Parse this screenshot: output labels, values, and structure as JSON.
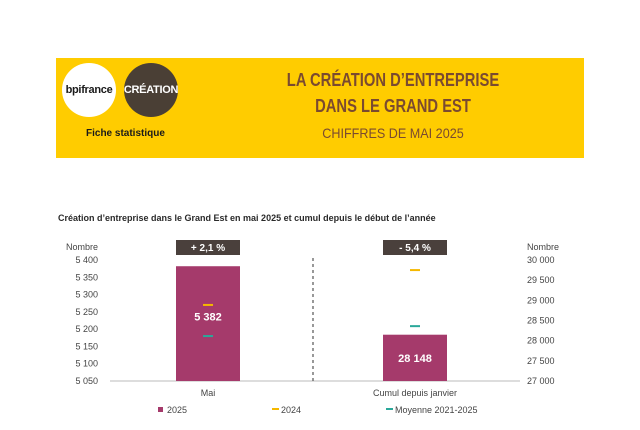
{
  "banner": {
    "logo_left": "bpifrance",
    "logo_right": "CRÉATION",
    "fiche": "Fiche statistique",
    "title_line1": "LA CRÉATION D’ENTREPRISE",
    "title_line2": "DANS LE GRAND EST",
    "subtitle": "CHIFFRES DE MAI 2025"
  },
  "colors": {
    "banner_bg": "#ffcc00",
    "bar_2025": "#a53a6b",
    "marker_2024": "#f5b800",
    "marker_avg": "#2aa89a",
    "badge_bg": "#4a403c"
  },
  "chart_data": {
    "type": "bar",
    "title": "Création d’entreprise dans le Grand Est en mai 2025 et cumul depuis le début de l’année",
    "categories": [
      "Mai",
      "Cumul depuis janvier"
    ],
    "series": [
      {
        "name": "2025",
        "values": [
          5382,
          28148
        ]
      },
      {
        "name": "2024",
        "values": [
          5270,
          29750
        ]
      },
      {
        "name": "Moyenne 2021-2025",
        "values": [
          5180,
          28360
        ]
      }
    ],
    "data_labels": [
      "5 382",
      "28 148"
    ],
    "badges": [
      "+ 2,1 %",
      "- 5,4 %"
    ],
    "left_axis": {
      "label": "Nombre",
      "ylim": [
        5050,
        5400
      ],
      "ticks": [
        "5 050",
        "5 100",
        "5 150",
        "5 200",
        "5 250",
        "5 300",
        "5 350",
        "5 400"
      ]
    },
    "right_axis": {
      "label": "Nombre",
      "ylim": [
        27000,
        30000
      ],
      "ticks": [
        "27 000",
        "27 500",
        "28 000",
        "28 500",
        "29 000",
        "29 500",
        "30 000"
      ]
    },
    "legend_position": "bottom",
    "grid": false
  }
}
